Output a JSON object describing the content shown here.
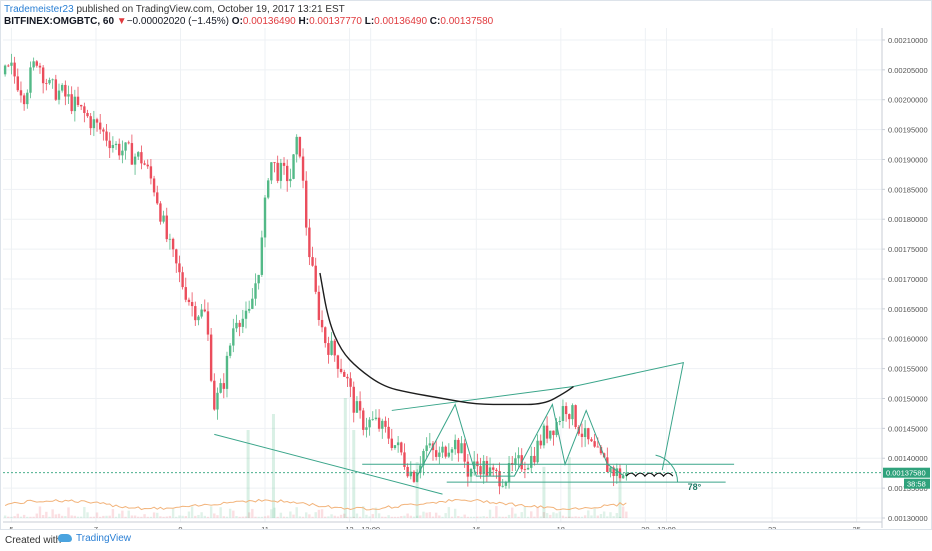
{
  "header": {
    "author": "Trademeister23",
    "published": " published on TradingView.com, October 19, 2017 13:21 EST",
    "symbol": "BITFINEX:OMGBTC, 60",
    "change_arrow": "▼",
    "change": "−0.00002020 (−1.45%)",
    "o_label": "O:",
    "o_value": "0.00136490",
    "h_label": "H:",
    "h_value": "0.00137770",
    "l_label": "L:",
    "l_value": "0.00136490",
    "c_label": "C:",
    "c_value": "0.00137580"
  },
  "footer": {
    "created_with": "Created with",
    "brand": "TradingView"
  },
  "colors": {
    "up": "#53b987",
    "down": "#eb4d5c",
    "drawing": "#3aa58a",
    "curve": "#1d1d1d",
    "price_tag": "#2fa27c",
    "grid": "#eef1f4"
  },
  "chart_data": {
    "type": "candlestick",
    "price_axis": {
      "ylim": [
        0.0013,
        0.00212
      ],
      "ticks": [
        "0.00210000",
        "0.00205000",
        "0.00200000",
        "0.00195000",
        "0.00190000",
        "0.00185000",
        "0.00180000",
        "0.00175000",
        "0.00170000",
        "0.00165000",
        "0.00160000",
        "0.00155000",
        "0.00150000",
        "0.00145000",
        "0.00140000",
        "0.00135000",
        "0.00130000"
      ]
    },
    "time_axis": {
      "ticks": [
        {
          "label": "5",
          "day": 5.0
        },
        {
          "label": "7",
          "day": 7.0
        },
        {
          "label": "9",
          "day": 9.0
        },
        {
          "label": "11",
          "day": 11.0
        },
        {
          "label": "13",
          "day": 13.0
        },
        {
          "label": "12:00",
          "day": 13.5
        },
        {
          "label": "16",
          "day": 16.0
        },
        {
          "label": "18",
          "day": 18.0
        },
        {
          "label": "20",
          "day": 20.0
        },
        {
          "label": "12:00",
          "day": 20.5
        },
        {
          "label": "23",
          "day": 23.0
        },
        {
          "label": "25",
          "day": 25.0
        }
      ],
      "xlim": [
        4.8,
        25.6
      ]
    },
    "last_price": "0.00137580",
    "countdown": "38:58",
    "annotation_angle": "78°",
    "price_path": [
      [
        4.8,
        0.00204
      ],
      [
        5.0,
        0.00205
      ],
      [
        5.3,
        0.00201
      ],
      [
        5.6,
        0.00207
      ],
      [
        5.9,
        0.00202
      ],
      [
        6.2,
        0.00201
      ],
      [
        6.5,
        0.00199
      ],
      [
        6.8,
        0.00197
      ],
      [
        7.1,
        0.00195
      ],
      [
        7.5,
        0.00192
      ],
      [
        7.8,
        0.00191
      ],
      [
        8.1,
        0.0019
      ],
      [
        8.4,
        0.00185
      ],
      [
        8.7,
        0.00176
      ],
      [
        9.0,
        0.0017
      ],
      [
        9.3,
        0.00165
      ],
      [
        9.6,
        0.00164
      ],
      [
        9.8,
        0.00149
      ],
      [
        10.0,
        0.00152
      ],
      [
        10.3,
        0.00164
      ],
      [
        10.6,
        0.00163
      ],
      [
        10.9,
        0.00174
      ],
      [
        11.1,
        0.0019
      ],
      [
        11.3,
        0.00188
      ],
      [
        11.6,
        0.00187
      ],
      [
        11.8,
        0.00194
      ],
      [
        12.0,
        0.00177
      ],
      [
        12.2,
        0.00167
      ],
      [
        12.4,
        0.0016
      ],
      [
        12.6,
        0.00158
      ],
      [
        12.9,
        0.00154
      ],
      [
        13.1,
        0.00149
      ],
      [
        13.3,
        0.00146
      ],
      [
        13.6,
        0.00146
      ],
      [
        13.9,
        0.00144
      ],
      [
        14.2,
        0.00141
      ],
      [
        14.5,
        0.00137
      ],
      [
        14.8,
        0.00142
      ],
      [
        15.1,
        0.0014
      ],
      [
        15.4,
        0.00143
      ],
      [
        15.6,
        0.00142
      ],
      [
        15.8,
        0.00138
      ],
      [
        16.1,
        0.00139
      ],
      [
        16.4,
        0.00137
      ],
      [
        16.7,
        0.00137
      ],
      [
        17.0,
        0.00139
      ],
      [
        17.3,
        0.0014
      ],
      [
        17.6,
        0.00144
      ],
      [
        17.9,
        0.00146
      ],
      [
        18.1,
        0.00149
      ],
      [
        18.3,
        0.00147
      ],
      [
        18.6,
        0.00143
      ],
      [
        18.9,
        0.0014
      ],
      [
        19.2,
        0.00138
      ],
      [
        19.5,
        0.00137
      ]
    ],
    "volume": [
      {
        "day": 10.6,
        "v": 0.55
      },
      {
        "day": 11.2,
        "v": 0.65
      },
      {
        "day": 12.9,
        "v": 0.75
      },
      {
        "day": 13.1,
        "v": 0.55
      },
      {
        "day": 14.6,
        "v": 0.35
      },
      {
        "day": 17.6,
        "v": 0.32
      },
      {
        "day": 18.2,
        "v": 0.38
      },
      {
        "day": 19.4,
        "v": 0.3
      }
    ],
    "drawings": {
      "curve": [
        [
          12.3,
          0.00171
        ],
        [
          12.5,
          0.00163
        ],
        [
          12.8,
          0.00158
        ],
        [
          13.2,
          0.00155
        ],
        [
          13.8,
          0.00152
        ],
        [
          14.4,
          0.00151
        ],
        [
          15.2,
          0.0015
        ],
        [
          16.0,
          0.00149
        ],
        [
          16.8,
          0.00149
        ],
        [
          17.6,
          0.00149
        ],
        [
          18.1,
          0.00151
        ],
        [
          18.3,
          0.00152
        ]
      ],
      "lines": [
        [
          [
            9.8,
            0.00144
          ],
          [
            15.2,
            0.00134
          ]
        ],
        [
          [
            14.0,
            0.00148
          ],
          [
            18.3,
            0.00152
          ],
          [
            20.9,
            0.00156
          ],
          [
            20.4,
            0.00138
          ]
        ],
        [
          [
            13.3,
            0.00139
          ],
          [
            22.1,
            0.00139
          ]
        ],
        [
          [
            15.3,
            0.00136
          ],
          [
            21.9,
            0.00136
          ]
        ],
        [
          [
            14.6,
            0.00137
          ],
          [
            15.5,
            0.00149
          ],
          [
            16.0,
            0.00137
          ],
          [
            16.9,
            0.00137
          ],
          [
            17.8,
            0.00149
          ],
          [
            18.1,
            0.00139
          ],
          [
            18.6,
            0.00148
          ],
          [
            19.1,
            0.00139
          ],
          [
            19.5,
            0.00137
          ]
        ]
      ]
    }
  }
}
